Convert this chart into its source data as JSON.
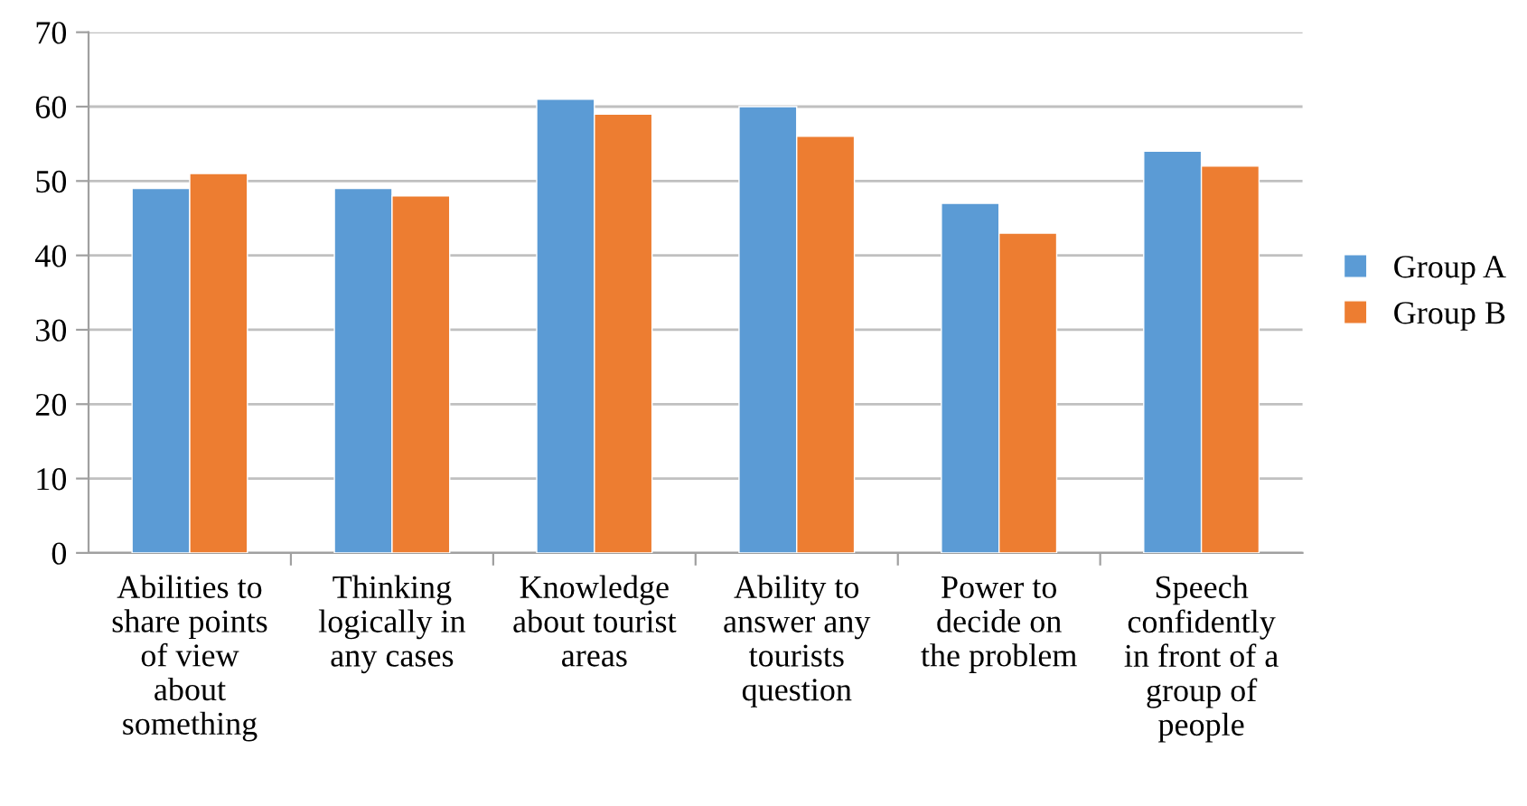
{
  "chart_data": {
    "type": "bar",
    "categories": [
      "Abilities to\nshare points\nof view\nabout\nsomething",
      "Thinking\nlogically in\nany cases",
      "Knowledge\nabout tourist\nareas",
      "Ability to\nanswer any\ntourists\nquestion",
      "Power to\ndecide on\nthe problem",
      "Speech\nconfidently\nin front of a\ngroup of\npeople"
    ],
    "series": [
      {
        "name": "Group A",
        "color": "#5b9bd5",
        "values": [
          49,
          49,
          61,
          60,
          47,
          54
        ]
      },
      {
        "name": "Group B",
        "color": "#ed7d31",
        "values": [
          51,
          48,
          59,
          56,
          43,
          52
        ]
      }
    ],
    "ylim": [
      0,
      70
    ],
    "yticks": [
      0,
      10,
      20,
      30,
      40,
      50,
      60,
      70
    ],
    "grid": "y",
    "legend": "right"
  }
}
